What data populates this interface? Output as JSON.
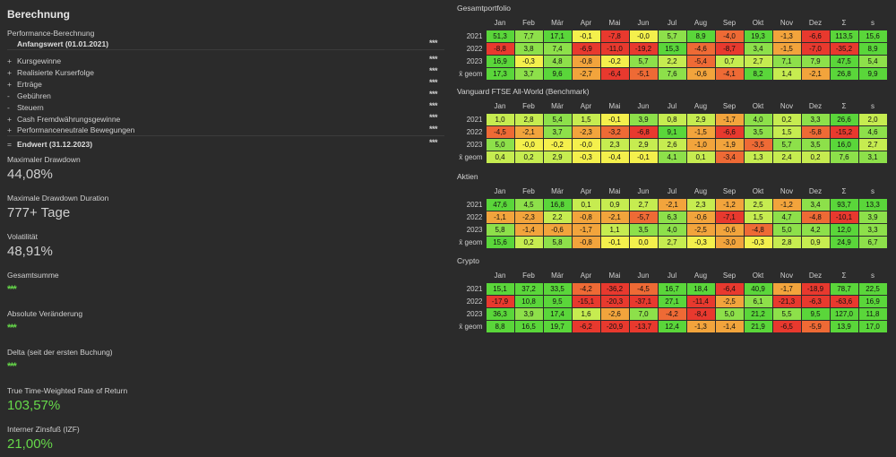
{
  "left": {
    "title": "Berechnung",
    "perf_label": "Performance-Berechnung",
    "rows": [
      {
        "sym": "",
        "label": "Anfangswert (01.01.2021)",
        "dots": "***",
        "bold": true
      },
      {
        "sym": "+",
        "label": "Kursgewinne",
        "dots": "***",
        "bold": false
      },
      {
        "sym": "+",
        "label": "Realisierte Kurserfolge",
        "dots": "***",
        "bold": false
      },
      {
        "sym": "+",
        "label": "Erträge",
        "dots": "***",
        "bold": false
      },
      {
        "sym": "-",
        "label": "Gebühren",
        "dots": "***",
        "bold": false
      },
      {
        "sym": "-",
        "label": "Steuern",
        "dots": "***",
        "bold": false
      },
      {
        "sym": "+",
        "label": "Cash Fremdwährungsgewinne",
        "dots": "***",
        "bold": false
      },
      {
        "sym": "+",
        "label": "Performanceneutrale Bewegungen",
        "dots": "***",
        "bold": false
      },
      {
        "sym": "=",
        "label": "Endwert (31.12.2023)",
        "dots": "***",
        "bold": true
      }
    ],
    "stats": [
      {
        "label": "Maximaler Drawdown",
        "value": "44,08%",
        "kind": "plain"
      },
      {
        "label": "Maximale Drawdown Duration",
        "value": "777+ Tage",
        "kind": "plain"
      },
      {
        "label": "Volatilität",
        "value": "48,91%",
        "kind": "plain"
      },
      {
        "label": "Gesamtsumme",
        "value": "***",
        "kind": "dots"
      },
      {
        "label": "Absolute Veränderung",
        "value": "***",
        "kind": "dots"
      },
      {
        "label": "Delta (seit der ersten Buchung)",
        "value": "***",
        "kind": "dots"
      },
      {
        "label": "True Time-Weighted Rate of Return",
        "value": "103,57%",
        "kind": "green"
      },
      {
        "label": "Interner Zinsfuß (IZF)",
        "value": "21,00%",
        "kind": "green"
      }
    ]
  },
  "columns": [
    "Jan",
    "Feb",
    "Mär",
    "Apr",
    "Mai",
    "Jun",
    "Jul",
    "Aug",
    "Sep",
    "Okt",
    "Nov",
    "Dez",
    "Σ",
    "s"
  ],
  "colors": {
    "strong_green": "#5ad63a",
    "green": "#8de04a",
    "light_green": "#c6ec50",
    "yellow": "#f4f04c",
    "orange": "#f2a43c",
    "red_orange": "#ee6a35",
    "red": "#e8392e"
  },
  "sections": [
    {
      "title": "Gesamtportfolio",
      "rows": [
        {
          "year": "2021",
          "cells": [
            "51,3",
            "7,7",
            "17,1",
            "-0,1",
            "-7,8",
            "-0,0",
            "5,7",
            "8,9",
            "-4,0",
            "19,3",
            "-1,3",
            "-6,6",
            "113,5",
            "15,6"
          ]
        },
        {
          "year": "2022",
          "cells": [
            "-8,8",
            "3,8",
            "7,4",
            "-6,9",
            "-11,0",
            "-19,2",
            "15,3",
            "-4,6",
            "-8,7",
            "3,4",
            "-1,5",
            "-7,0",
            "-35,2",
            "8,9"
          ]
        },
        {
          "year": "2023",
          "cells": [
            "16,9",
            "-0,3",
            "4,8",
            "-0,8",
            "-0,2",
            "5,7",
            "2,2",
            "-5,4",
            "0,7",
            "2,7",
            "7,1",
            "7,9",
            "47,5",
            "5,4"
          ]
        },
        {
          "year": "x̄ geom",
          "cells": [
            "17,3",
            "3,7",
            "9,6",
            "-2,7",
            "-6,4",
            "-5,1",
            "7,6",
            "-0,6",
            "-4,1",
            "8,2",
            "1,4",
            "-2,1",
            "26,8",
            "9,9"
          ]
        }
      ]
    },
    {
      "title": "Vanguard FTSE All-World (Benchmark)",
      "rows": [
        {
          "year": "2021",
          "cells": [
            "1,0",
            "2,8",
            "5,4",
            "1,5",
            "-0,1",
            "3,9",
            "0,8",
            "2,9",
            "-1,7",
            "4,0",
            "0,2",
            "3,3",
            "26,6",
            "2,0"
          ]
        },
        {
          "year": "2022",
          "cells": [
            "-4,5",
            "-2,1",
            "3,7",
            "-2,3",
            "-3,2",
            "-6,8",
            "9,1",
            "-1,5",
            "-6,6",
            "3,5",
            "1,5",
            "-5,8",
            "-15,2",
            "4,6"
          ]
        },
        {
          "year": "2023",
          "cells": [
            "5,0",
            "-0,0",
            "-0,2",
            "-0,0",
            "2,3",
            "2,9",
            "2,6",
            "-1,0",
            "-1,9",
            "-3,5",
            "5,7",
            "3,5",
            "16,0",
            "2,7"
          ]
        },
        {
          "year": "x̄ geom",
          "cells": [
            "0,4",
            "0,2",
            "2,9",
            "-0,3",
            "-0,4",
            "-0,1",
            "4,1",
            "0,1",
            "-3,4",
            "1,3",
            "2,4",
            "0,2",
            "7,6",
            "3,1"
          ]
        }
      ]
    },
    {
      "title": "Aktien",
      "rows": [
        {
          "year": "2021",
          "cells": [
            "47,6",
            "4,5",
            "16,8",
            "0,1",
            "0,9",
            "2,7",
            "-2,1",
            "2,3",
            "-1,2",
            "2,5",
            "-1,2",
            "3,4",
            "93,7",
            "13,3"
          ]
        },
        {
          "year": "2022",
          "cells": [
            "-1,1",
            "-2,3",
            "2,2",
            "-0,8",
            "-2,1",
            "-5,7",
            "6,3",
            "-0,6",
            "-7,1",
            "1,5",
            "4,7",
            "-4,8",
            "-10,1",
            "3,9"
          ]
        },
        {
          "year": "2023",
          "cells": [
            "5,8",
            "-1,4",
            "-0,6",
            "-1,7",
            "1,1",
            "3,5",
            "4,0",
            "-2,5",
            "-0,6",
            "-4,8",
            "5,0",
            "4,2",
            "12,0",
            "3,3"
          ]
        },
        {
          "year": "x̄ geom",
          "cells": [
            "15,6",
            "0,2",
            "5,8",
            "-0,8",
            "-0,1",
            "0,0",
            "2,7",
            "-0,3",
            "-3,0",
            "-0,3",
            "2,8",
            "0,9",
            "24,9",
            "6,7"
          ]
        }
      ]
    },
    {
      "title": "Crypto",
      "rows": [
        {
          "year": "2021",
          "cells": [
            "15,1",
            "37,2",
            "33,5",
            "-4,2",
            "-36,2",
            "-4,5",
            "16,7",
            "18,4",
            "-6,4",
            "40,9",
            "-1,7",
            "-18,9",
            "78,7",
            "22,5"
          ]
        },
        {
          "year": "2022",
          "cells": [
            "-17,9",
            "10,8",
            "9,5",
            "-15,1",
            "-20,3",
            "-37,1",
            "27,1",
            "-11,4",
            "-2,5",
            "6,1",
            "-21,3",
            "-6,3",
            "-63,6",
            "16,9"
          ]
        },
        {
          "year": "2023",
          "cells": [
            "36,3",
            "3,9",
            "17,4",
            "1,6",
            "-2,6",
            "7,0",
            "-4,2",
            "-8,4",
            "5,0",
            "21,2",
            "5,5",
            "9,5",
            "127,0",
            "11,8"
          ]
        },
        {
          "year": "x̄ geom",
          "cells": [
            "8,8",
            "16,5",
            "19,7",
            "-6,2",
            "-20,9",
            "-13,7",
            "12,4",
            "-1,3",
            "-1,4",
            "21,9",
            "-6,5",
            "-5,9",
            "13,9",
            "17,0"
          ]
        }
      ]
    }
  ]
}
